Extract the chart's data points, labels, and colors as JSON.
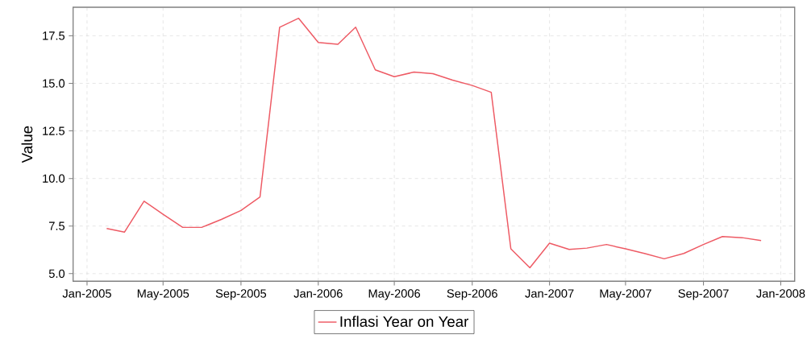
{
  "chart_data": {
    "type": "line",
    "ylabel": "Value",
    "x": [
      "2005-02",
      "2005-03",
      "2005-04",
      "2005-05",
      "2005-06",
      "2005-07",
      "2005-08",
      "2005-09",
      "2005-10",
      "2005-11",
      "2005-12",
      "2006-01",
      "2006-02",
      "2006-03",
      "2006-04",
      "2006-05",
      "2006-06",
      "2006-07",
      "2006-08",
      "2006-09",
      "2006-10",
      "2006-11",
      "2006-12",
      "2007-01",
      "2007-02",
      "2007-03",
      "2007-04",
      "2007-05",
      "2007-06",
      "2007-07",
      "2007-08",
      "2007-09",
      "2007-10",
      "2007-11",
      "2007-12"
    ],
    "series": [
      {
        "name": "Inflasi Year on Year",
        "color": "#ee5a64",
        "values": [
          7.37,
          7.18,
          8.81,
          8.12,
          7.43,
          7.43,
          7.85,
          8.32,
          9.03,
          17.95,
          18.42,
          17.15,
          17.05,
          17.95,
          15.71,
          15.35,
          15.59,
          15.51,
          15.17,
          14.89,
          14.53,
          6.3,
          5.31,
          6.6,
          6.27,
          6.34,
          6.53,
          6.3,
          6.05,
          5.78,
          6.06,
          6.53,
          6.95,
          6.89,
          6.74
        ]
      }
    ],
    "xlim": [
      "2004-12-10",
      "2008-01-23"
    ],
    "ylim": [
      4.6,
      19.0
    ],
    "xticks": [
      {
        "value": "2005-01",
        "label": "Jan-2005"
      },
      {
        "value": "2005-05",
        "label": "May-2005"
      },
      {
        "value": "2005-09",
        "label": "Sep-2005"
      },
      {
        "value": "2006-01",
        "label": "Jan-2006"
      },
      {
        "value": "2006-05",
        "label": "May-2006"
      },
      {
        "value": "2006-09",
        "label": "Sep-2006"
      },
      {
        "value": "2007-01",
        "label": "Jan-2007"
      },
      {
        "value": "2007-05",
        "label": "May-2007"
      },
      {
        "value": "2007-09",
        "label": "Sep-2007"
      },
      {
        "value": "2008-01",
        "label": "Jan-2008"
      }
    ],
    "yticks": [
      {
        "value": 5,
        "label": "5.0"
      },
      {
        "value": 7.5,
        "label": "7.5"
      },
      {
        "value": 10,
        "label": "10.0"
      },
      {
        "value": 12.5,
        "label": "12.5"
      },
      {
        "value": 15,
        "label": "15.0"
      },
      {
        "value": 17.5,
        "label": "17.5"
      }
    ],
    "grid": true,
    "legend": "bottom",
    "line_style": "solid"
  }
}
